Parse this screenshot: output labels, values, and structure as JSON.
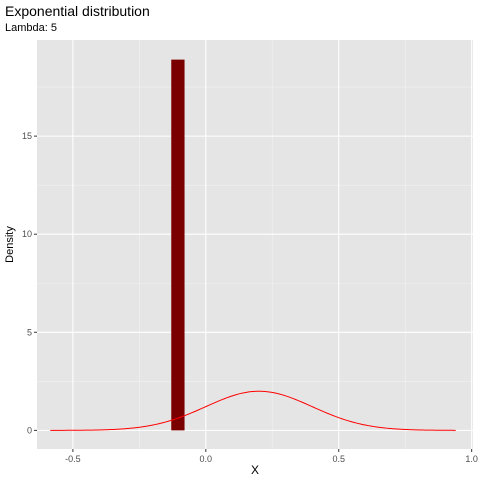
{
  "chart_data": {
    "type": "bar",
    "title": "Exponential distribution",
    "subtitle": "Lambda: 5",
    "xlabel": "X",
    "ylabel": "Density",
    "xlim": [
      -0.635,
      1.005
    ],
    "ylim": [
      -0.95,
      19.9
    ],
    "x_ticks": [
      -0.5,
      0.0,
      0.5,
      1.0
    ],
    "x_tick_labels": [
      "-0.5",
      "0.0",
      "0.5",
      "1.0"
    ],
    "y_ticks": [
      0,
      5,
      10,
      15
    ],
    "y_tick_labels": [
      "0",
      "5",
      "10",
      "15"
    ],
    "grid": true,
    "background": "#e5e5e5",
    "series": [
      {
        "type": "bar",
        "color": "#7a0000",
        "bars": [
          {
            "x_start": -0.13,
            "x_end": -0.08,
            "value": 18.9
          }
        ]
      },
      {
        "type": "line",
        "color": "#ff0000",
        "distribution": "normal",
        "mean": 0.2,
        "sd": 0.2,
        "x_range": [
          -0.585,
          0.94
        ]
      }
    ]
  }
}
